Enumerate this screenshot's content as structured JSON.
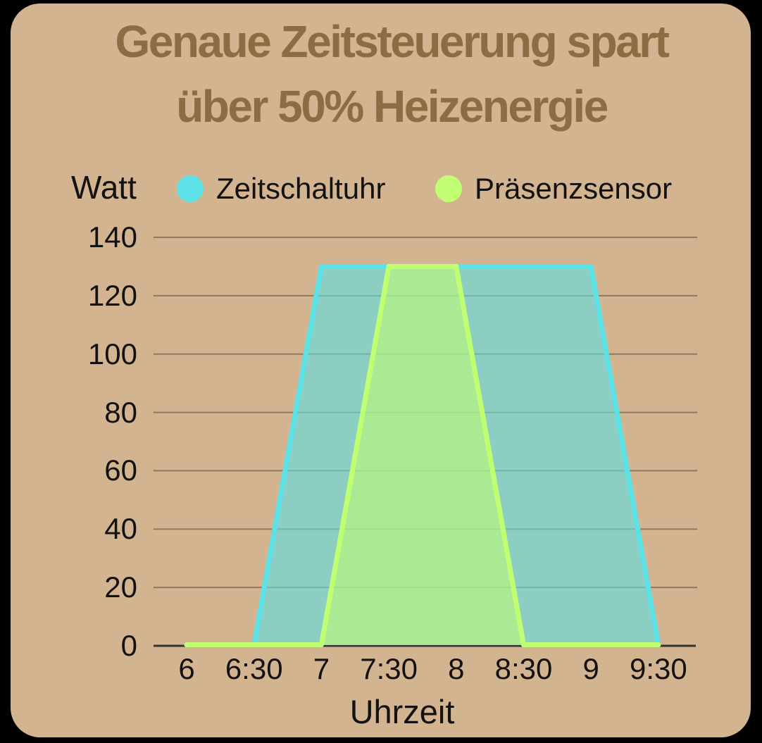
{
  "title": {
    "line1": "Genaue Zeitsteuerung spart",
    "line2": "über 50% Heizenergie"
  },
  "y_axis_title": "Watt",
  "x_axis_title": "Uhrzeit",
  "legend": [
    {
      "label": "Zeitschaltuhr",
      "color": "#5ce1e6"
    },
    {
      "label": "Präsenzsensor",
      "color": "#c1ff72"
    }
  ],
  "colors": {
    "card_background": "#d2b491",
    "outside_background": "#000000",
    "title_text": "#8a6d42",
    "axis_text": "#141210",
    "gridline": "rgba(60,52,40,0.45)",
    "zero_axis_line": "#37322b",
    "series_fill_opacity": "0.58"
  },
  "chart_data": {
    "type": "area",
    "title": "Genaue Zeitsteuerung spart über 50% Heizenergie",
    "xlabel": "Uhrzeit",
    "ylabel": "Watt",
    "categories": [
      "6",
      "6:30",
      "7",
      "7:30",
      "8",
      "8:30",
      "9",
      "9:30"
    ],
    "series": [
      {
        "name": "Zeitschaltuhr",
        "color": "#5ce1e6",
        "values": [
          0,
          0,
          130,
          130,
          130,
          130,
          130,
          0
        ]
      },
      {
        "name": "Präsenzsensor",
        "color": "#c1ff72",
        "values": [
          0,
          0,
          0,
          130,
          130,
          0,
          0,
          0
        ]
      }
    ],
    "ylim": [
      0,
      140
    ],
    "ytick_step": 20,
    "grid": true,
    "legend_position": "top"
  }
}
